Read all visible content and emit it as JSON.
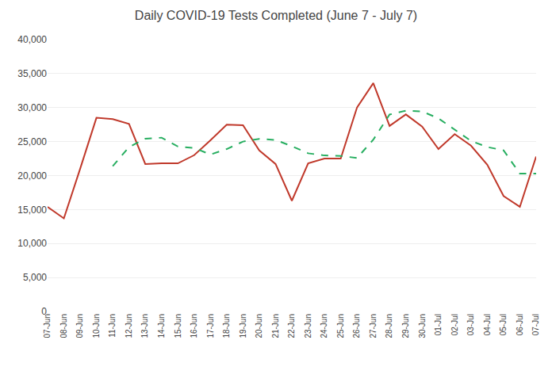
{
  "chart_data": {
    "type": "line",
    "title": "Daily COVID-19 Tests Completed (June 7 - July 7)",
    "categories": [
      "07-Jun",
      "08-Jun",
      "09-Jun",
      "10-Jun",
      "11-Jun",
      "12-Jun",
      "13-Jun",
      "14-Jun",
      "15-Jun",
      "16-Jun",
      "17-Jun",
      "18-Jun",
      "19-Jun",
      "20-Jun",
      "21-Jun",
      "22-Jun",
      "23-Jun",
      "24-Jun",
      "25-Jun",
      "26-Jun",
      "27-Jun",
      "28-Jun",
      "29-Jun",
      "30-Jun",
      "01-Jul",
      "02-Jul",
      "03-Jul",
      "04-Jul",
      "05-Jul",
      "06-Jul",
      "07-Jul"
    ],
    "series": [
      {
        "color": "#c0392b",
        "line_style": "solid",
        "values": [
          15400,
          13700,
          21000,
          28500,
          28300,
          27600,
          21700,
          21800,
          21800,
          23000,
          25200,
          27500,
          27400,
          23700,
          21700,
          16300,
          21800,
          22500,
          22500,
          30000,
          33600,
          27300,
          29000,
          27200,
          23900,
          26100,
          24400,
          21600,
          17000,
          15400,
          22800
        ]
      },
      {
        "color": "#27ae60",
        "line_style": "dashed",
        "values": [
          null,
          null,
          null,
          null,
          21380,
          24200,
          25420,
          25580,
          24280,
          24060,
          23100,
          23900,
          25000,
          25400,
          25240,
          24320,
          23280,
          22960,
          22900,
          22580,
          25280,
          28980,
          29540,
          29440,
          28420,
          26740,
          25100,
          24200,
          23720,
          20280,
          20280
        ]
      }
    ],
    "ylim": [
      0,
      40000
    ],
    "yticks": [
      0,
      {
        "value": 5000,
        "label": "5,000"
      },
      {
        "value": 10000,
        "label": "10,000"
      },
      {
        "value": 15000,
        "label": "15,000"
      },
      {
        "value": 20000,
        "label": "20,000"
      },
      {
        "value": 25000,
        "label": "25,000"
      },
      {
        "value": 30000,
        "label": "30,000"
      },
      {
        "value": 35000,
        "label": "35,000"
      },
      {
        "value": 40000,
        "label": "40,000"
      }
    ],
    "grid": true
  }
}
